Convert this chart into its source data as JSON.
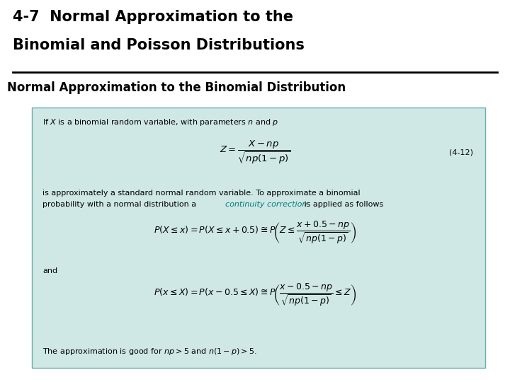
{
  "title_line1": "4-7  Normal Approximation to the",
  "title_line2": "Binomial and Poisson Distributions",
  "subtitle": "Normal Approximation to the Binomial Distribution",
  "bg_color": "#ffffff",
  "box_bg_color": "#cfe8e5",
  "box_edge_color": "#6aadaa",
  "title_color": "#000000",
  "subtitle_color": "#000000",
  "teal_color": "#007b7b",
  "text_color": "#000000",
  "separator_color": "#000000",
  "line1_text": "If $X$ is a binomial random variable, with parameters $n$ and $p$",
  "formula1": "$Z = \\dfrac{X - np}{\\sqrt{np(1 - p)}}$",
  "formula1_label": "(4-12)",
  "text2a": "is approximately a standard normal random variable. To approximate a binomial",
  "text2b": "probability with a normal distribution a ",
  "text2b_teal": "continuity correction",
  "text2b_end": " is applied as follows",
  "formula2": "$P(X \\leq x) = P(X \\leq x + 0.5) \\cong P\\!\\left(Z \\leq \\dfrac{x + 0.5 - np}{\\sqrt{np(1-p)}}\\right)$",
  "and_text": "and",
  "formula3": "$P(x \\leq X) = P(x - 0.5 \\leq X) \\cong P\\!\\left(\\dfrac{x - 0.5 - np}{\\sqrt{np(1-p)}} \\leq Z\\right)$",
  "footer": "The approximation is good for $np > 5$ and $n(1 - p) > 5$."
}
